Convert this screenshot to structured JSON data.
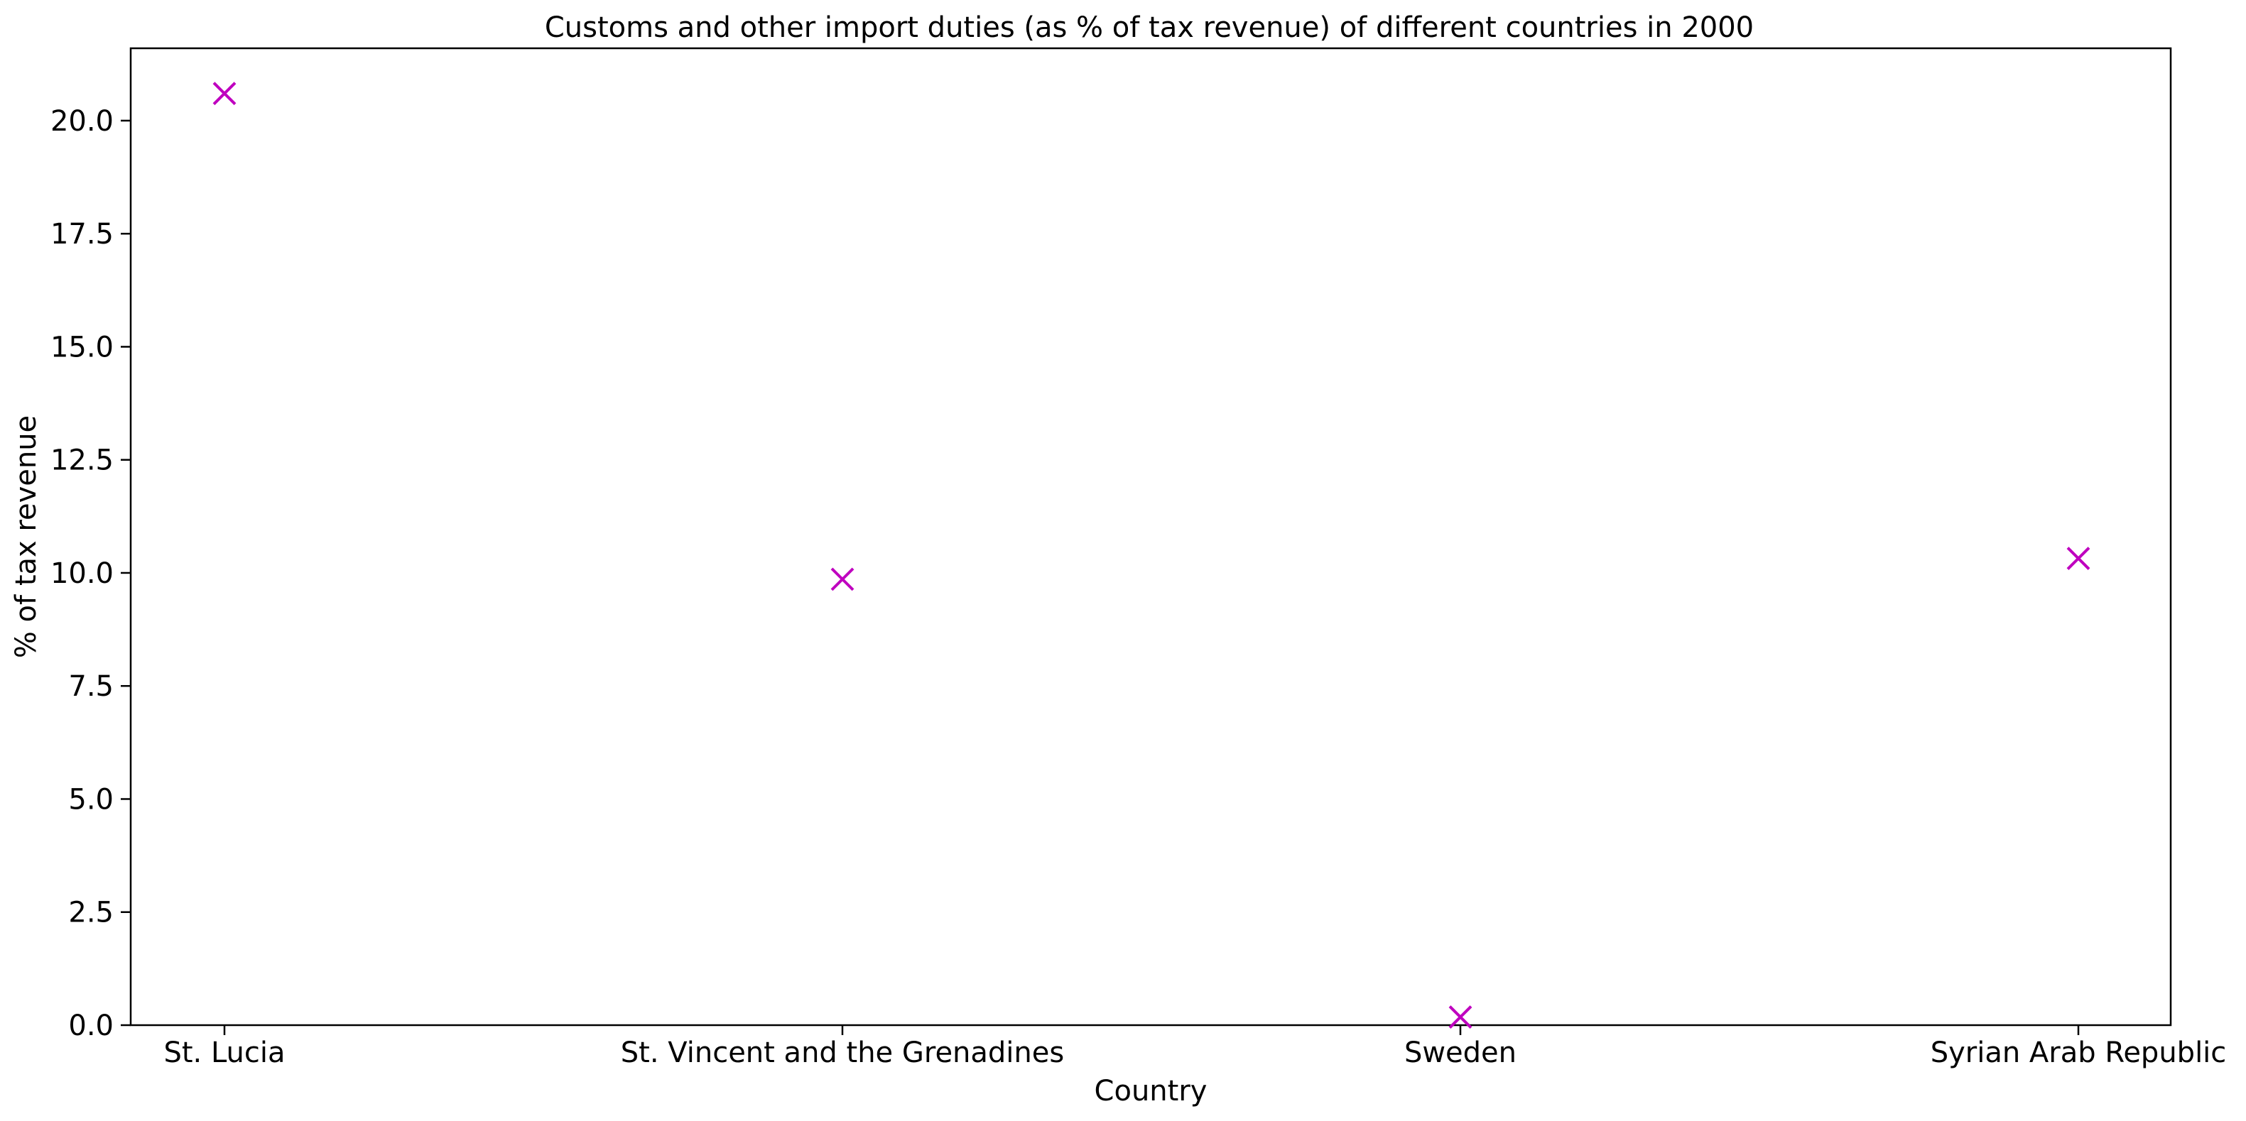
{
  "chart_data": {
    "type": "scatter",
    "title": "Customs and other import duties (as % of tax revenue) of different countries in 2000",
    "xlabel": "Country",
    "ylabel": "% of tax revenue",
    "categories": [
      "St. Lucia",
      "St. Vincent and the Grenadines",
      "Sweden",
      "Syrian Arab Republic"
    ],
    "values": [
      20.6,
      9.86,
      0.18,
      10.32
    ],
    "ylim": [
      0,
      21.6
    ],
    "yticks": [
      "0.0",
      "2.5",
      "5.0",
      "7.5",
      "10.0",
      "12.5",
      "15.0",
      "17.5",
      "20.0"
    ],
    "marker": "x",
    "marker_color": "#bf00bf",
    "grid": false,
    "legend": "none"
  }
}
